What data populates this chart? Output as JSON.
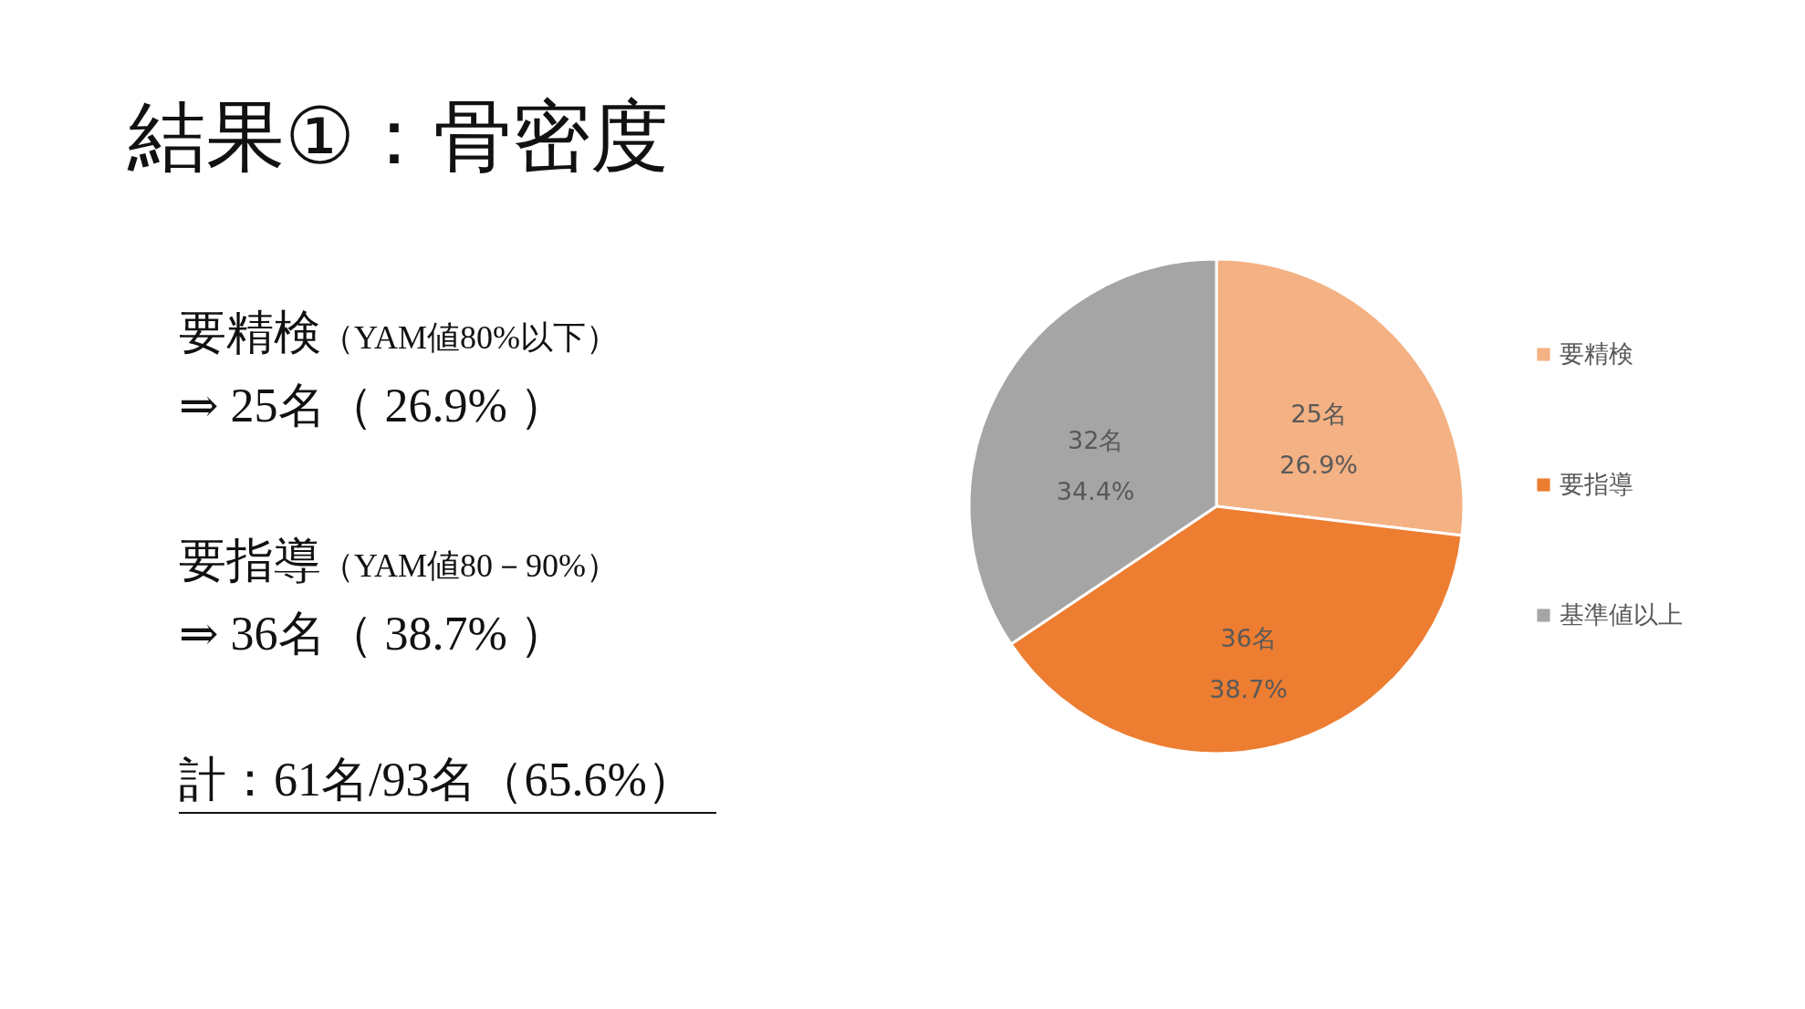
{
  "chart_data": {
    "type": "pie",
    "title": "結果①：骨密度",
    "categories": [
      "要精検",
      "要指導",
      "基準値以上"
    ],
    "values": [
      25,
      36,
      32
    ],
    "colors": [
      "#f4b183",
      "#ed7d31",
      "#a5a5a5"
    ],
    "value_labels": [
      "25名\n26.9%",
      "36名\n38.7%",
      "32名\n34.4%"
    ],
    "legend": "right",
    "annotations": [
      "要精検",
      "（YAM値80%以下）",
      "⇒ 25名（ 26.9% ）",
      "要指導",
      "（YAM値80－90%）",
      "⇒ 36名（ 38.7% ）",
      "計：61名/93名（65.6%）"
    ]
  }
}
